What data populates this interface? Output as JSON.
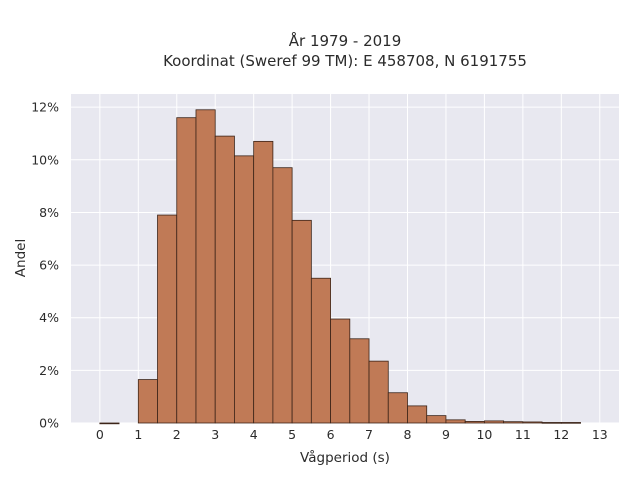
{
  "chart_data": {
    "type": "bar",
    "title": "År 1979 - 2019",
    "subtitle": "Koordinat (Sweref 99 TM): E 458708, N 6191755",
    "xlabel": "Vågperiod (s)",
    "ylabel": "Andel",
    "xlim": [
      -0.75,
      13.5
    ],
    "ylim": [
      0,
      12.5
    ],
    "x_ticks": [
      "0",
      "1",
      "2",
      "3",
      "4",
      "5",
      "6",
      "7",
      "8",
      "9",
      "10",
      "11",
      "12",
      "13"
    ],
    "y_ticks": [
      "0%",
      "2%",
      "4%",
      "6%",
      "8%",
      "10%",
      "12%"
    ],
    "bin_width": 0.5,
    "bins": [
      {
        "x0": 0.0,
        "value": 0.0
      },
      {
        "x0": 1.0,
        "value": 1.65
      },
      {
        "x0": 1.5,
        "value": 7.9
      },
      {
        "x0": 2.0,
        "value": 11.6
      },
      {
        "x0": 2.5,
        "value": 11.9
      },
      {
        "x0": 3.0,
        "value": 10.9
      },
      {
        "x0": 3.5,
        "value": 10.15
      },
      {
        "x0": 4.0,
        "value": 10.7
      },
      {
        "x0": 4.5,
        "value": 9.7
      },
      {
        "x0": 5.0,
        "value": 7.7
      },
      {
        "x0": 5.5,
        "value": 5.5
      },
      {
        "x0": 6.0,
        "value": 3.95
      },
      {
        "x0": 6.5,
        "value": 3.2
      },
      {
        "x0": 7.0,
        "value": 2.35
      },
      {
        "x0": 7.5,
        "value": 1.15
      },
      {
        "x0": 8.0,
        "value": 0.65
      },
      {
        "x0": 8.5,
        "value": 0.28
      },
      {
        "x0": 9.0,
        "value": 0.12
      },
      {
        "x0": 9.5,
        "value": 0.06
      },
      {
        "x0": 10.0,
        "value": 0.08
      },
      {
        "x0": 10.5,
        "value": 0.05
      },
      {
        "x0": 11.0,
        "value": 0.04
      },
      {
        "x0": 11.5,
        "value": 0.02
      },
      {
        "x0": 12.0,
        "value": 0.02
      }
    ],
    "grid": true,
    "colors": {
      "bar_fill": "#c07a56",
      "bar_stroke": "#3c2418",
      "plot_bg": "#e8e8f0",
      "grid": "#ffffff"
    }
  }
}
